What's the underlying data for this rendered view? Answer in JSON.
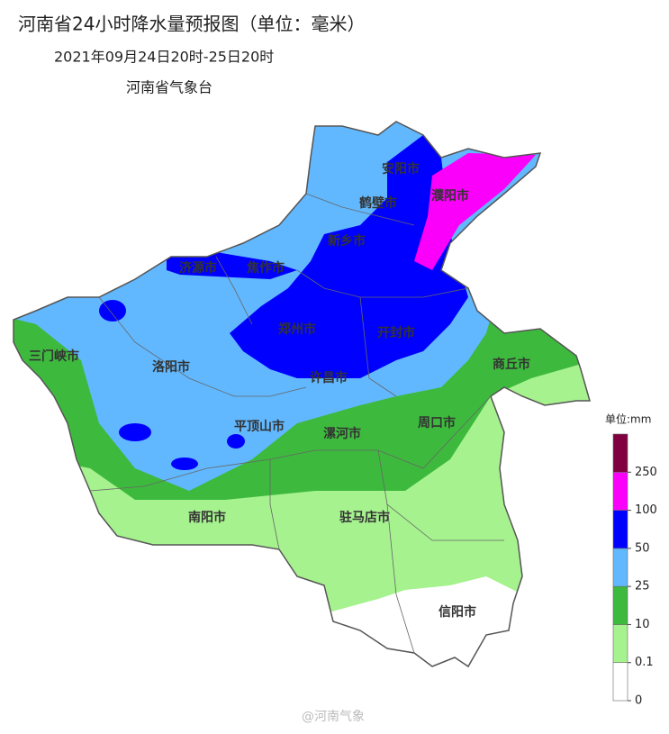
{
  "header": {
    "title": "河南省24小时降水量预报图（单位：毫米）",
    "subtitle": "2021年09月24日20时-25日20时",
    "agency": "河南省气象台"
  },
  "cities": [
    "安阳市",
    "鹤壁市",
    "濮阳市",
    "新乡市",
    "济源市",
    "焦作市",
    "郑州市",
    "开封市",
    "三门峡市",
    "洛阳市",
    "许昌市",
    "商丘市",
    "平顶山市",
    "漯河市",
    "周口市",
    "南阳市",
    "驻马店市",
    "信阳市"
  ],
  "legend": {
    "title": "单位:mm",
    "levels": [
      0,
      0.1,
      10,
      25,
      50,
      100,
      250
    ],
    "colors": [
      "#ffffff",
      "#a6f28f",
      "#3dba3d",
      "#61b8ff",
      "#0000ff",
      "#fa00fa",
      "#800040"
    ]
  },
  "watermark": "@河南气象"
}
